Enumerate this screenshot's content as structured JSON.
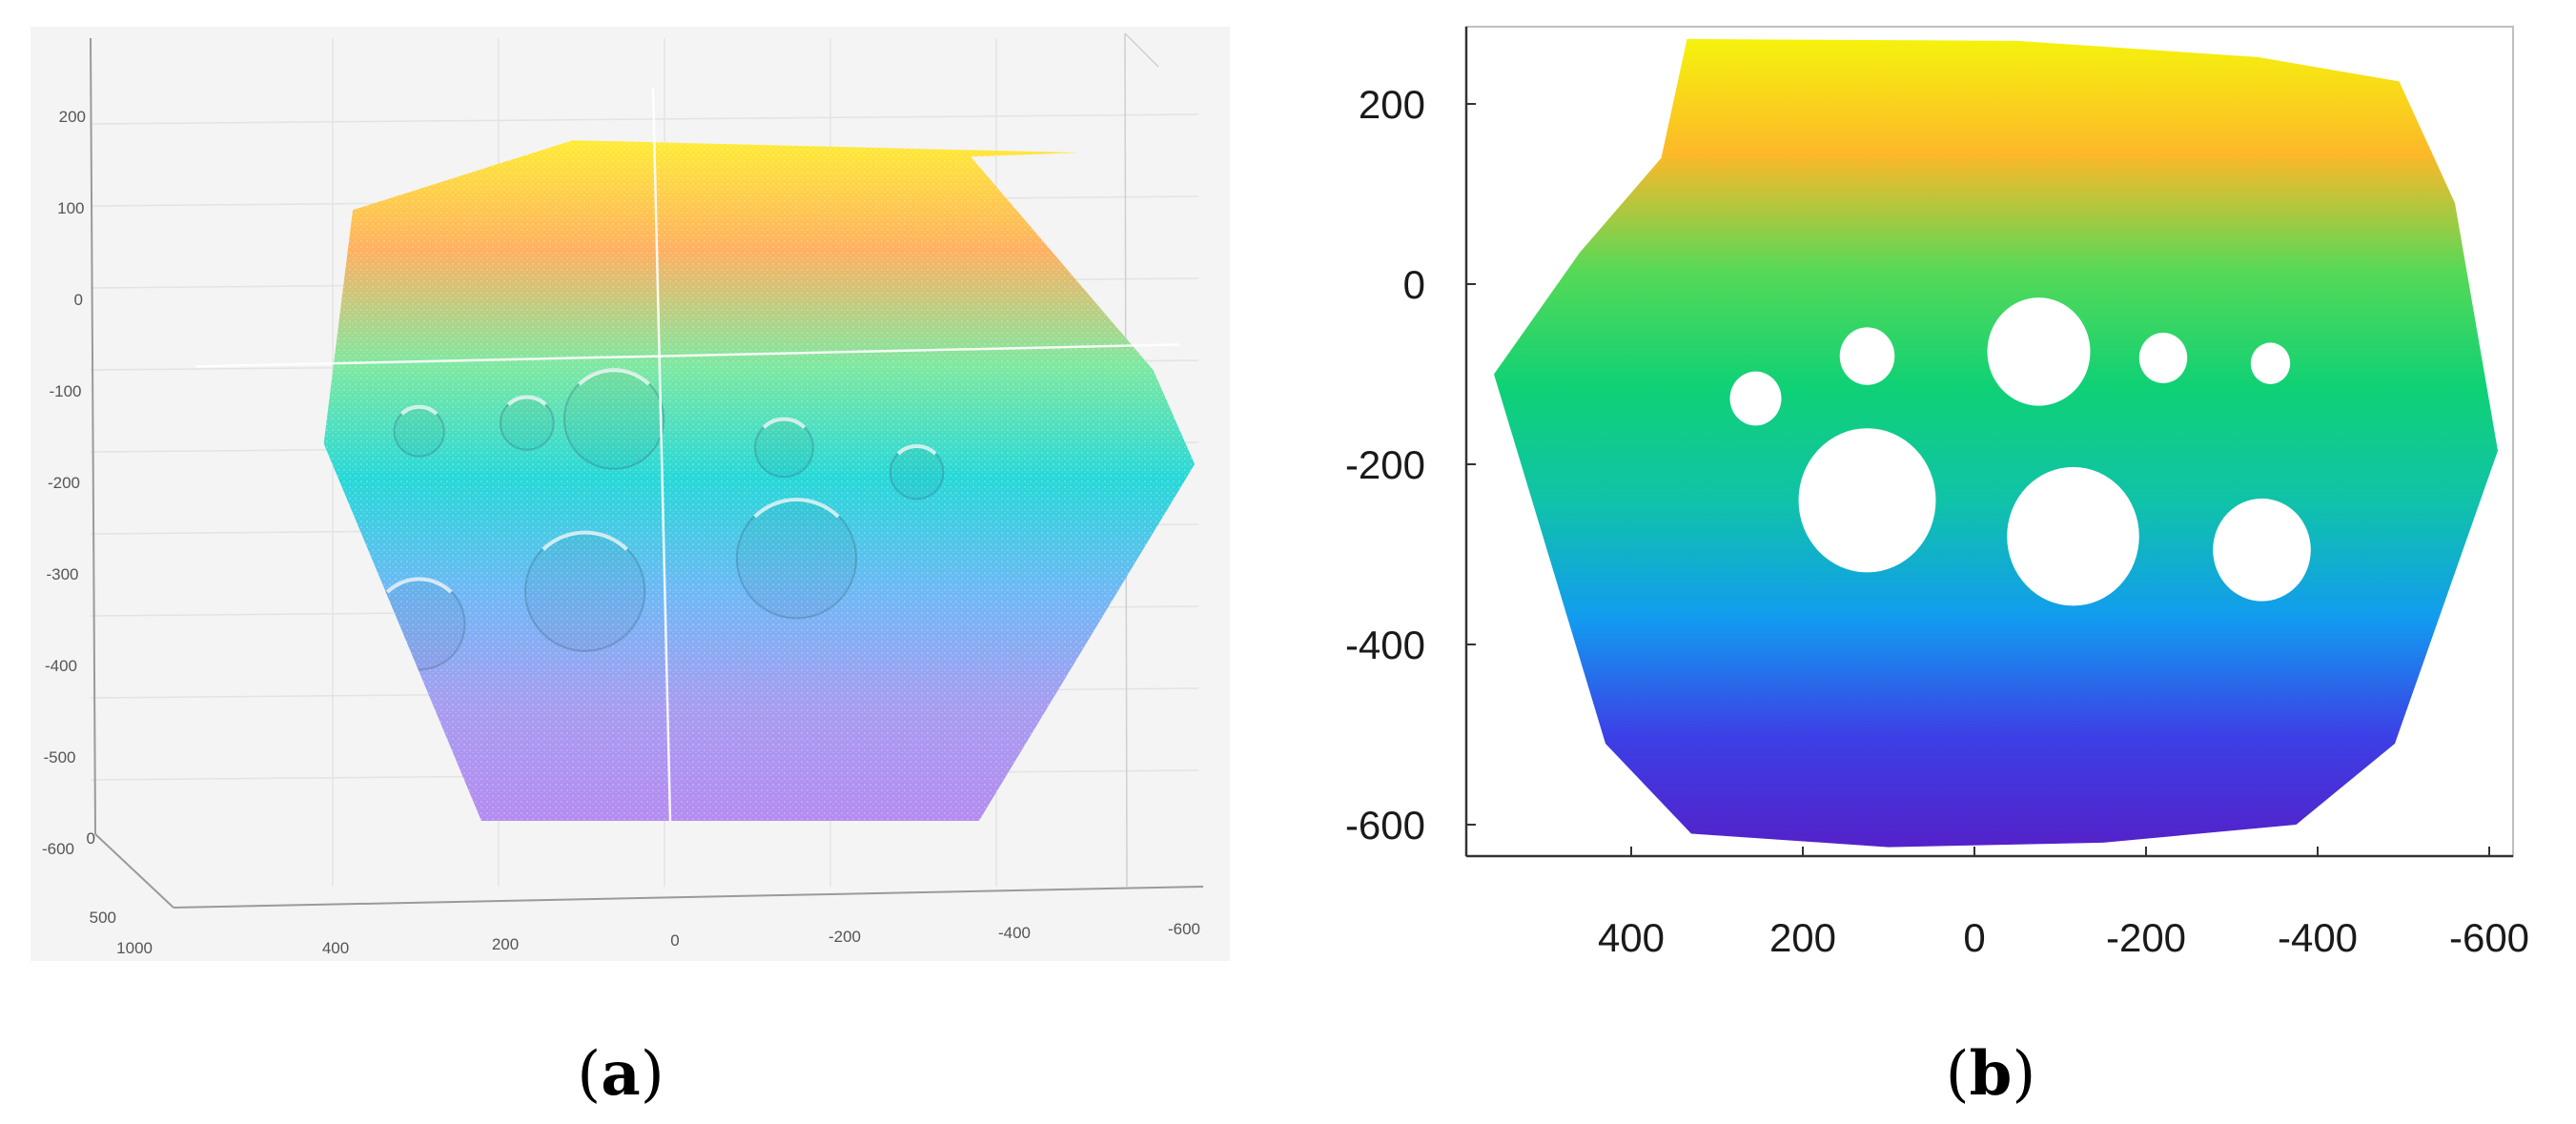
{
  "chart_data": [
    {
      "panel": "a",
      "type": "scatter",
      "title": "",
      "xlabel": "",
      "ylabel": "",
      "view": "3d",
      "grid": true,
      "x_ticks": [
        "400",
        "200",
        "0",
        "-200",
        "-400",
        "-600"
      ],
      "y_ticks": [
        "200",
        "100",
        "0",
        "-100",
        "-200",
        "-300",
        "-400",
        "-500",
        "-600"
      ],
      "depth_ticks": [
        "0",
        "500",
        "1000"
      ],
      "xlim": [
        600,
        -600
      ],
      "ylim": [
        -650,
        200
      ],
      "outline": [
        [
          -490,
          165
        ],
        [
          120,
          180
        ],
        [
          385,
          95
        ],
        [
          420,
          -190
        ],
        [
          230,
          -650
        ],
        [
          -370,
          -650
        ],
        [
          -630,
          -215
        ],
        [
          -580,
          -100
        ],
        [
          -360,
          160
        ]
      ],
      "crosshair": {
        "x": 0,
        "y": -90
      },
      "holes": [
        {
          "x": -295,
          "y": -225,
          "r": 32
        },
        {
          "x": -150,
          "y": -330,
          "r": 72
        },
        {
          "x": -135,
          "y": -195,
          "r": 35
        },
        {
          "x": 70,
          "y": -160,
          "r": 60
        },
        {
          "x": 105,
          "y": -370,
          "r": 72
        },
        {
          "x": 175,
          "y": -165,
          "r": 32
        },
        {
          "x": 305,
          "y": -175,
          "r": 30
        },
        {
          "x": 305,
          "y": -410,
          "r": 55
        }
      ],
      "colormap": [
        "#ffee33",
        "#ffb060",
        "#7fe8a0",
        "#26d8d8",
        "#6eb8f5",
        "#a79cf0",
        "#b48cf0"
      ]
    },
    {
      "panel": "b",
      "type": "scatter",
      "title": "",
      "xlabel": "",
      "ylabel": "",
      "view": "top",
      "grid": false,
      "x_ticks": [
        400,
        200,
        0,
        -200,
        -400,
        -600
      ],
      "y_ticks": [
        200,
        0,
        -200,
        -400,
        -600
      ],
      "xlim": [
        565,
        -610
      ],
      "ylim": [
        -635,
        272
      ],
      "outline": [
        [
          335,
          272
        ],
        [
          -50,
          270
        ],
        [
          -330,
          252
        ],
        [
          -495,
          225
        ],
        [
          -560,
          90
        ],
        [
          -610,
          -185
        ],
        [
          -490,
          -510
        ],
        [
          -375,
          -600
        ],
        [
          -150,
          -620
        ],
        [
          100,
          -625
        ],
        [
          330,
          -610
        ],
        [
          430,
          -510
        ],
        [
          560,
          -100
        ],
        [
          460,
          35
        ],
        [
          365,
          140
        ]
      ],
      "holes": [
        {
          "x": -75,
          "y": -75,
          "r": 60
        },
        {
          "x": 125,
          "y": -80,
          "r": 32
        },
        {
          "x": -220,
          "y": -82,
          "r": 28
        },
        {
          "x": -345,
          "y": -88,
          "r": 23
        },
        {
          "x": 255,
          "y": -127,
          "r": 30
        },
        {
          "x": 125,
          "y": -240,
          "r": 80
        },
        {
          "x": -115,
          "y": -280,
          "r": 77
        },
        {
          "x": -335,
          "y": -295,
          "r": 57
        }
      ],
      "colormap": [
        "#f5f20c",
        "#fcb829",
        "#56d957",
        "#0fd175",
        "#10c2aa",
        "#129bf0",
        "#3c40e6",
        "#5520c8"
      ]
    }
  ],
  "labels": {
    "a": {
      "open": "(",
      "letter": "a",
      "close": ")"
    },
    "b": {
      "open": "(",
      "letter": "b",
      "close": ")"
    }
  }
}
